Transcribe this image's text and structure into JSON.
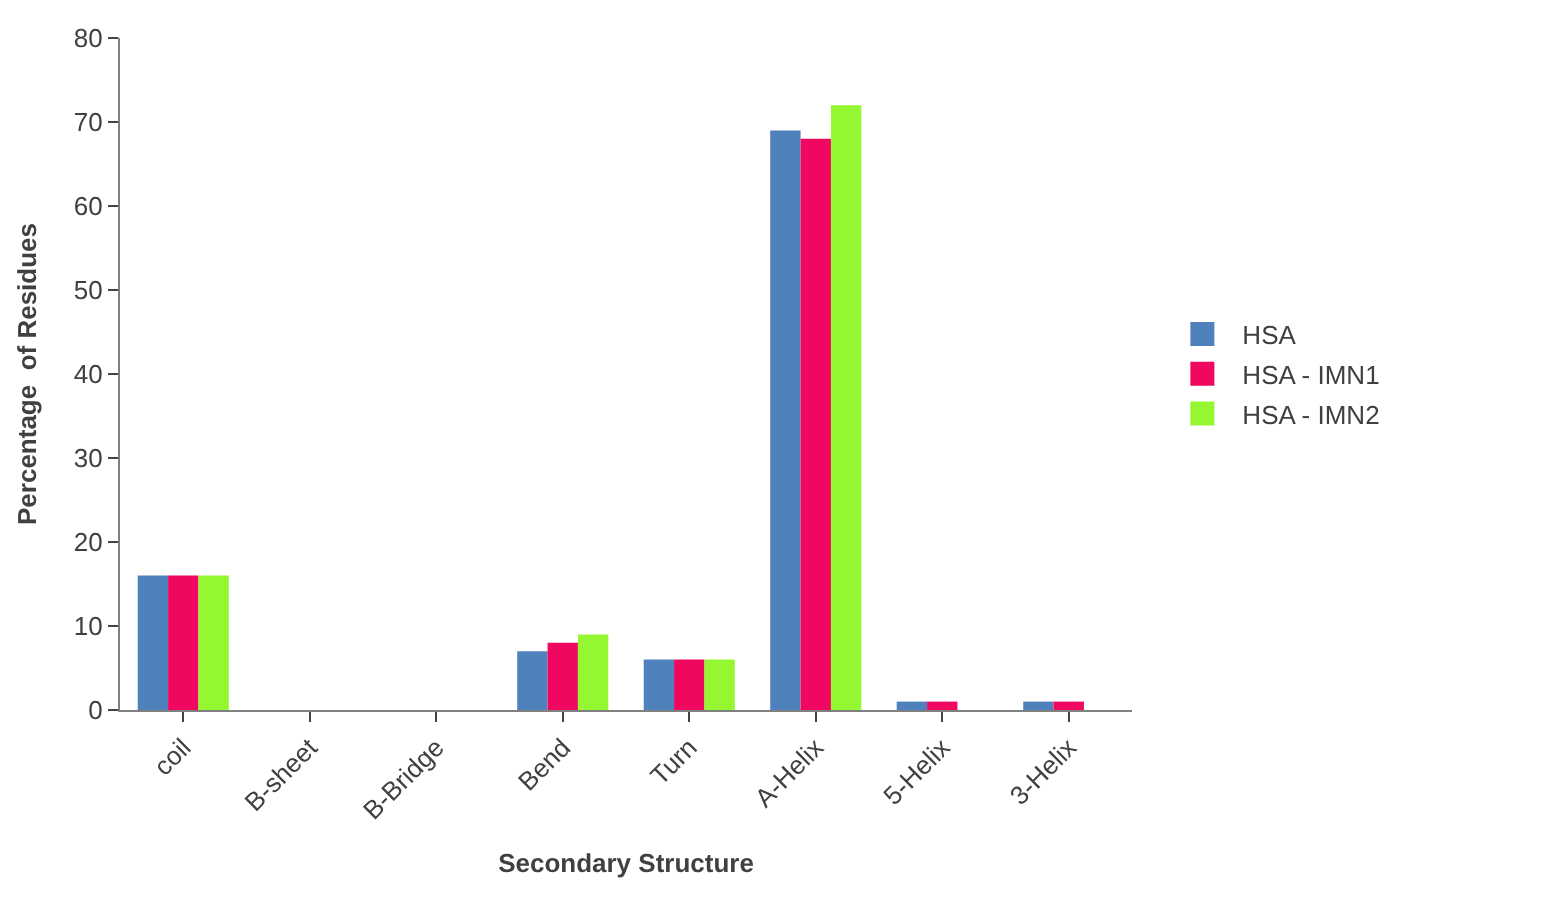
{
  "chart_data": {
    "type": "bar",
    "xlabel": "Secondary Structure",
    "ylabel": "Percentage  of Residues",
    "categories": [
      "coil",
      "B-sheet",
      "B-Bridge",
      "Bend",
      "Turn",
      "A-Helix",
      "5-Helix",
      "3-Helix"
    ],
    "series": [
      {
        "name": "HSA",
        "color": "#4f81bd",
        "values": [
          16,
          0,
          0,
          7,
          6,
          69,
          1,
          1
        ]
      },
      {
        "name": "HSA - IMN1",
        "color": "#f0075f",
        "values": [
          16,
          0,
          0,
          8,
          6,
          68,
          1,
          1
        ]
      },
      {
        "name": "HSA - IMN2",
        "color": "#94f731",
        "values": [
          16,
          0,
          0,
          9,
          6,
          72,
          0,
          0
        ]
      }
    ],
    "ylim": [
      0,
      80
    ],
    "yticks": [
      0,
      10,
      20,
      30,
      40,
      50,
      60,
      70,
      80
    ],
    "grid": false,
    "legend": "right"
  }
}
